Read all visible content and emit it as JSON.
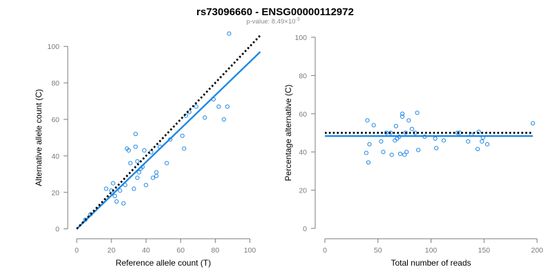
{
  "title": "rs73096660 - ENSG00000112972",
  "subtitle": {
    "text": "p-value: 8.49×10",
    "exponent": "-3"
  },
  "colors": {
    "points": "#1e88e5",
    "fit_line": "#1e88e5",
    "reference_line": "#000000",
    "axis": "#7a7a7a"
  },
  "chart_data": [
    {
      "type": "scatter",
      "xlabel": "Reference allele count (T)",
      "ylabel": "Alternative allele count (C)",
      "xlim": [
        0,
        105
      ],
      "ylim": [
        -2,
        105
      ],
      "xticks": [
        0,
        20,
        40,
        60,
        80,
        100
      ],
      "yticks": [
        0,
        20,
        40,
        60,
        80,
        100
      ],
      "grid": false,
      "points": [
        {
          "x": 5,
          "y": 5
        },
        {
          "x": 8,
          "y": 8
        },
        {
          "x": 17,
          "y": 22
        },
        {
          "x": 20,
          "y": 21
        },
        {
          "x": 21,
          "y": 25
        },
        {
          "x": 22,
          "y": 18
        },
        {
          "x": 23,
          "y": 15
        },
        {
          "x": 25,
          "y": 21
        },
        {
          "x": 27,
          "y": 14
        },
        {
          "x": 28,
          "y": 24
        },
        {
          "x": 29,
          "y": 44
        },
        {
          "x": 30,
          "y": 43
        },
        {
          "x": 31,
          "y": 36
        },
        {
          "x": 33,
          "y": 22
        },
        {
          "x": 34,
          "y": 45
        },
        {
          "x": 34,
          "y": 52
        },
        {
          "x": 35,
          "y": 28
        },
        {
          "x": 35,
          "y": 37
        },
        {
          "x": 36,
          "y": 31
        },
        {
          "x": 37,
          "y": 33
        },
        {
          "x": 38,
          "y": 34
        },
        {
          "x": 39,
          "y": 43
        },
        {
          "x": 40,
          "y": 24
        },
        {
          "x": 43,
          "y": 42
        },
        {
          "x": 44,
          "y": 28
        },
        {
          "x": 46,
          "y": 29
        },
        {
          "x": 46,
          "y": 31
        },
        {
          "x": 48,
          "y": 45
        },
        {
          "x": 52,
          "y": 36
        },
        {
          "x": 54,
          "y": 49
        },
        {
          "x": 61,
          "y": 51
        },
        {
          "x": 62,
          "y": 44
        },
        {
          "x": 63,
          "y": 62
        },
        {
          "x": 65,
          "y": 64
        },
        {
          "x": 69,
          "y": 67
        },
        {
          "x": 74,
          "y": 61
        },
        {
          "x": 79,
          "y": 71
        },
        {
          "x": 82,
          "y": 67
        },
        {
          "x": 85,
          "y": 60
        },
        {
          "x": 87,
          "y": 67
        },
        {
          "x": 88,
          "y": 107
        }
      ],
      "lines": [
        {
          "style": "dotted",
          "x": [
            0,
            106
          ],
          "y": [
            0,
            106
          ]
        },
        {
          "style": "solid",
          "x": [
            0,
            106
          ],
          "y": [
            0,
            97
          ]
        }
      ]
    },
    {
      "type": "scatter",
      "xlabel": "Total number of reads",
      "ylabel": "Percentage alternative (C)",
      "xlim": [
        0,
        200
      ],
      "ylim": [
        0,
        100
      ],
      "xticks": [
        0,
        50,
        100,
        150,
        200
      ],
      "yticks": [
        0,
        20,
        40,
        60,
        80,
        100
      ],
      "grid": false,
      "points": [
        {
          "x": 39,
          "y": 39.5
        },
        {
          "x": 40,
          "y": 56.5
        },
        {
          "x": 41,
          "y": 34.5
        },
        {
          "x": 42,
          "y": 44
        },
        {
          "x": 46,
          "y": 54
        },
        {
          "x": 53,
          "y": 45.5
        },
        {
          "x": 55,
          "y": 40
        },
        {
          "x": 58,
          "y": 50
        },
        {
          "x": 62,
          "y": 50
        },
        {
          "x": 63,
          "y": 38.5
        },
        {
          "x": 66,
          "y": 46
        },
        {
          "x": 67,
          "y": 53.5
        },
        {
          "x": 68,
          "y": 47
        },
        {
          "x": 70,
          "y": 48
        },
        {
          "x": 71,
          "y": 39
        },
        {
          "x": 73,
          "y": 58.5
        },
        {
          "x": 73,
          "y": 60
        },
        {
          "x": 75,
          "y": 38.5
        },
        {
          "x": 76,
          "y": 50
        },
        {
          "x": 77,
          "y": 40
        },
        {
          "x": 79,
          "y": 56.5
        },
        {
          "x": 82,
          "y": 52
        },
        {
          "x": 85,
          "y": 50
        },
        {
          "x": 87,
          "y": 60.5
        },
        {
          "x": 88,
          "y": 41
        },
        {
          "x": 94,
          "y": 48
        },
        {
          "x": 104,
          "y": 47
        },
        {
          "x": 105,
          "y": 42
        },
        {
          "x": 112,
          "y": 46
        },
        {
          "x": 125,
          "y": 50
        },
        {
          "x": 127,
          "y": 50
        },
        {
          "x": 135,
          "y": 45.5
        },
        {
          "x": 138,
          "y": 49
        },
        {
          "x": 144,
          "y": 41.5
        },
        {
          "x": 145,
          "y": 50.5
        },
        {
          "x": 148,
          "y": 45.5
        },
        {
          "x": 149,
          "y": 47.5
        },
        {
          "x": 153,
          "y": 44
        },
        {
          "x": 196,
          "y": 55
        }
      ],
      "lines": [
        {
          "style": "dotted",
          "x": [
            0,
            196
          ],
          "y": [
            50,
            50
          ]
        },
        {
          "style": "solid",
          "x": [
            0,
            196
          ],
          "y": [
            48.3,
            48.3
          ]
        }
      ]
    }
  ]
}
